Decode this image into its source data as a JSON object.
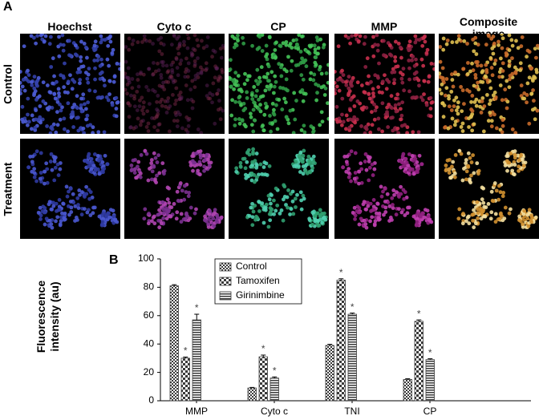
{
  "figure": {
    "panel_a": {
      "label": "A",
      "columns": [
        "Hoechst",
        "Cyto c",
        "CP",
        "MMP",
        "Composite image"
      ],
      "rows": [
        "Control",
        "Treatment"
      ]
    },
    "panel_b": {
      "label": "B"
    }
  },
  "chart_data": {
    "type": "bar",
    "ylabel": "Fluorescence intensity (au)",
    "categories": [
      "MMP",
      "Cyto c",
      "TNI",
      "CP"
    ],
    "series": [
      {
        "name": "Control",
        "color": "#3a3a3a",
        "pattern": "fine-check",
        "values": [
          81,
          9,
          39,
          15
        ],
        "errors": [
          0.8,
          0.4,
          0.8,
          0.5
        ]
      },
      {
        "name": "Tamoxifen",
        "color": "#3a3a3a",
        "pattern": "coarse-check",
        "values": [
          30,
          31,
          85,
          56
        ],
        "errors": [
          0.8,
          1.2,
          1,
          1
        ],
        "annotations": [
          "*",
          "*",
          "*",
          "*"
        ]
      },
      {
        "name": "Girinimbine",
        "color": "#3a3a3a",
        "pattern": "stripes",
        "values": [
          57,
          16,
          61,
          29
        ],
        "errors": [
          4,
          0.8,
          0.8,
          0.6
        ],
        "annotations": [
          "*",
          "*",
          "*",
          "*"
        ]
      }
    ],
    "ylim": [
      0,
      100
    ],
    "yticks": [
      0,
      20,
      40,
      60,
      80,
      100
    ],
    "legend": "top-left"
  }
}
